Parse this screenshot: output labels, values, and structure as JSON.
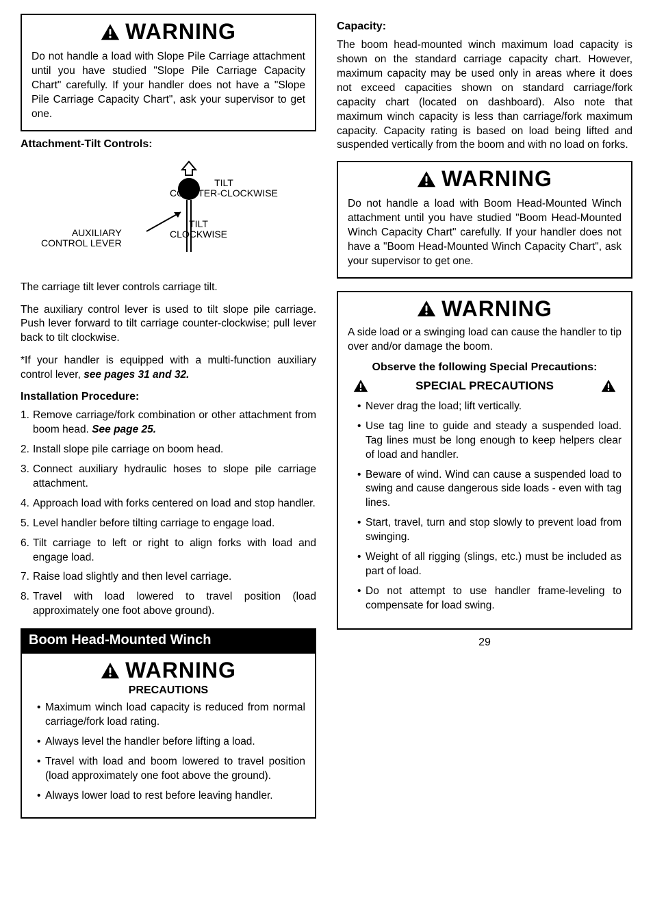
{
  "page_number": "29",
  "warning_label": "WARNING",
  "left": {
    "warning1_body": "Do not handle a load with Slope Pile Carriage attachment until you have studied \"Slope Pile Carriage Capacity Chart\" carefully. If your handler does not have a \"Slope Pile Carriage Capacity Chart\", ask your supervisor to get one.",
    "attach_heading": "Attachment-Tilt Controls:",
    "diagram": {
      "tilt_ccw": "TILT\nCOUNTER-CLOCKWISE",
      "tilt_cw": "TILT\nCLOCKWISE",
      "aux_lever": "AUXILIARY\nCONTROL LEVER"
    },
    "para1": "The carriage tilt lever controls carriage tilt.",
    "para2": "The auxiliary control lever is used to tilt slope pile carriage. Push lever forward to tilt carriage counter-clockwise; pull lever back to tilt clockwise.",
    "para3_prefix": "*If your handler is equipped with a multi-function auxiliary control lever, ",
    "para3_bold": "see pages 31 and 32.",
    "install_heading": "Installation Procedure:",
    "steps": [
      {
        "text": "Remove carriage/fork combination or other attachment from boom head. ",
        "bold": "See page 25."
      },
      {
        "text": "Install slope pile carriage on boom head."
      },
      {
        "text": "Connect auxiliary hydraulic hoses to slope pile carriage attachment."
      },
      {
        "text": "Approach load with forks centered on load and stop handler."
      },
      {
        "text": "Level handler before tilting carriage to engage load."
      },
      {
        "text": "Tilt carriage to left or right to align forks with load and engage load."
      },
      {
        "text": "Raise load slightly and then level carriage."
      },
      {
        "text": "Travel with load lowered to travel position (load approximately one foot above ground)."
      }
    ],
    "black_bar": "Boom Head-Mounted Winch",
    "precautions_label": "PRECAUTIONS",
    "precautions": [
      "Maximum winch load capacity is reduced from normal carriage/fork load rating.",
      "Always level the handler before lifting a load.",
      "Travel with load and boom lowered to travel position (load approximately one foot above the ground).",
      "Always lower load to rest before leaving handler."
    ]
  },
  "right": {
    "capacity_heading": "Capacity:",
    "capacity_body": "The boom head-mounted winch maximum load capacity is shown on the standard carriage capacity chart. However, maximum capacity may be used only in areas where it does not exceed capacities shown on standard carriage/fork capacity chart (located on dashboard). Also note that maximum winch capacity is less than carriage/fork maximum capacity. Capacity rating is based on load being lifted and suspended vertically from the boom and with no load on forks.",
    "warning2_body": "Do not handle a load with Boom Head-Mounted Winch attachment until you have studied \"Boom Head-Mounted Winch Capacity Chart\" carefully. If your handler does not have a \"Boom Head-Mounted Winch Capacity Chart\", ask your supervisor to get one.",
    "warning3_body": "A side load or a swinging load can cause the handler to tip over and/or damage the boom.",
    "observe_heading": "Observe the following Special Precautions:",
    "special_label": "SPECIAL PRECAUTIONS",
    "special_bullets": [
      "Never drag the load; lift vertically.",
      "Use tag line to guide and steady a suspended load. Tag lines must be long enough to keep helpers clear of load and handler.",
      "Beware of wind. Wind can cause a suspended load to swing and cause dangerous side loads - even with tag lines.",
      "Start, travel, turn and stop slowly to prevent load from swinging.",
      "Weight of all rigging (slings, etc.) must be included as part of load.",
      "Do not attempt to use handler frame-leveling to compensate for load swing."
    ]
  }
}
